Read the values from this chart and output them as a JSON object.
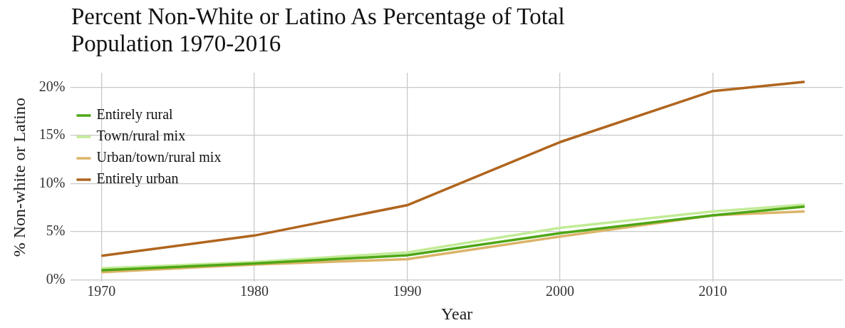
{
  "chart_data": {
    "type": "line",
    "title": "Percent Non-White or Latino As Percentage of Total Population 1970-2016",
    "xlabel": "Year",
    "ylabel": "% Non-white or Latino",
    "x": [
      1970,
      1980,
      1990,
      2000,
      2010,
      2016
    ],
    "series": [
      {
        "name": "Entirely rural",
        "color": "#4fa616",
        "values": [
          1.0,
          1.7,
          2.55,
          4.85,
          6.7,
          7.6
        ]
      },
      {
        "name": "Town/rural mix",
        "color": "#c2eb97",
        "values": [
          1.2,
          1.85,
          2.85,
          5.4,
          7.1,
          7.8
        ]
      },
      {
        "name": "Urban/town/rural mix",
        "color": "#dbb469",
        "values": [
          0.8,
          1.6,
          2.15,
          4.5,
          6.7,
          7.1
        ]
      },
      {
        "name": "Entirely urban",
        "color": "#b0651e",
        "values": [
          2.5,
          4.6,
          7.75,
          14.3,
          19.6,
          20.55
        ]
      }
    ],
    "xlim": [
      1968,
      2018.5
    ],
    "xticks": [
      1970,
      1980,
      1990,
      2000,
      2010
    ],
    "ylim": [
      -0.2,
      21.5
    ],
    "yticks": [
      {
        "value": 0,
        "label": "0%"
      },
      {
        "value": 5,
        "label": "5%"
      },
      {
        "value": 10,
        "label": "10%"
      },
      {
        "value": 15,
        "label": "15%"
      },
      {
        "value": 20,
        "label": "20%"
      }
    ],
    "grid": true,
    "legend": "top left",
    "marker": "none",
    "line_style": "solid"
  }
}
